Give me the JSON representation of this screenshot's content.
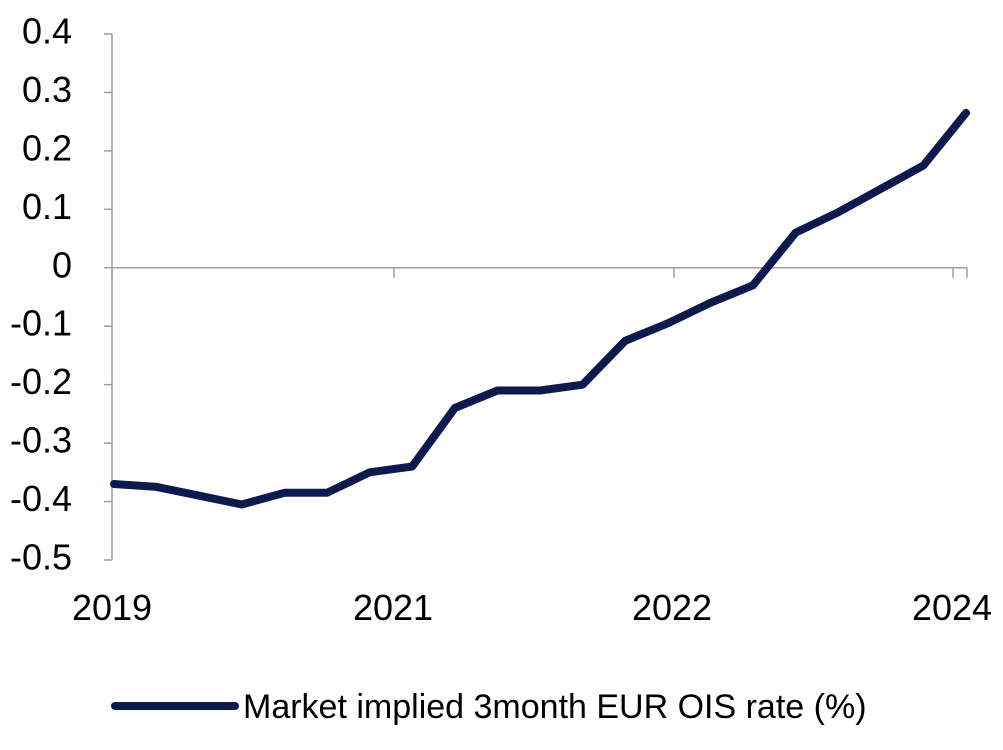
{
  "chart_data": {
    "type": "line",
    "title": "",
    "xlabel": "",
    "ylabel": "",
    "ylim": [
      -0.5,
      0.4
    ],
    "y_ticks": [
      "0.4",
      "0.3",
      "0.2",
      "0.1",
      "0",
      "-0.1",
      "-0.2",
      "-0.3",
      "-0.4",
      "-0.5"
    ],
    "x_tick_labels": [
      "2019",
      "2021",
      "2022",
      "2024"
    ],
    "grid": false,
    "legend_position": "bottom",
    "series": [
      {
        "name": "Market implied 3month EUR OIS rate (%)",
        "color": "#0d1a4d",
        "values": [
          -0.37,
          -0.375,
          -0.39,
          -0.405,
          -0.385,
          -0.385,
          -0.35,
          -0.34,
          -0.24,
          -0.21,
          -0.21,
          -0.2,
          -0.125,
          -0.095,
          -0.06,
          -0.03,
          0.06,
          0.095,
          0.135,
          0.175,
          0.265
        ]
      }
    ]
  }
}
